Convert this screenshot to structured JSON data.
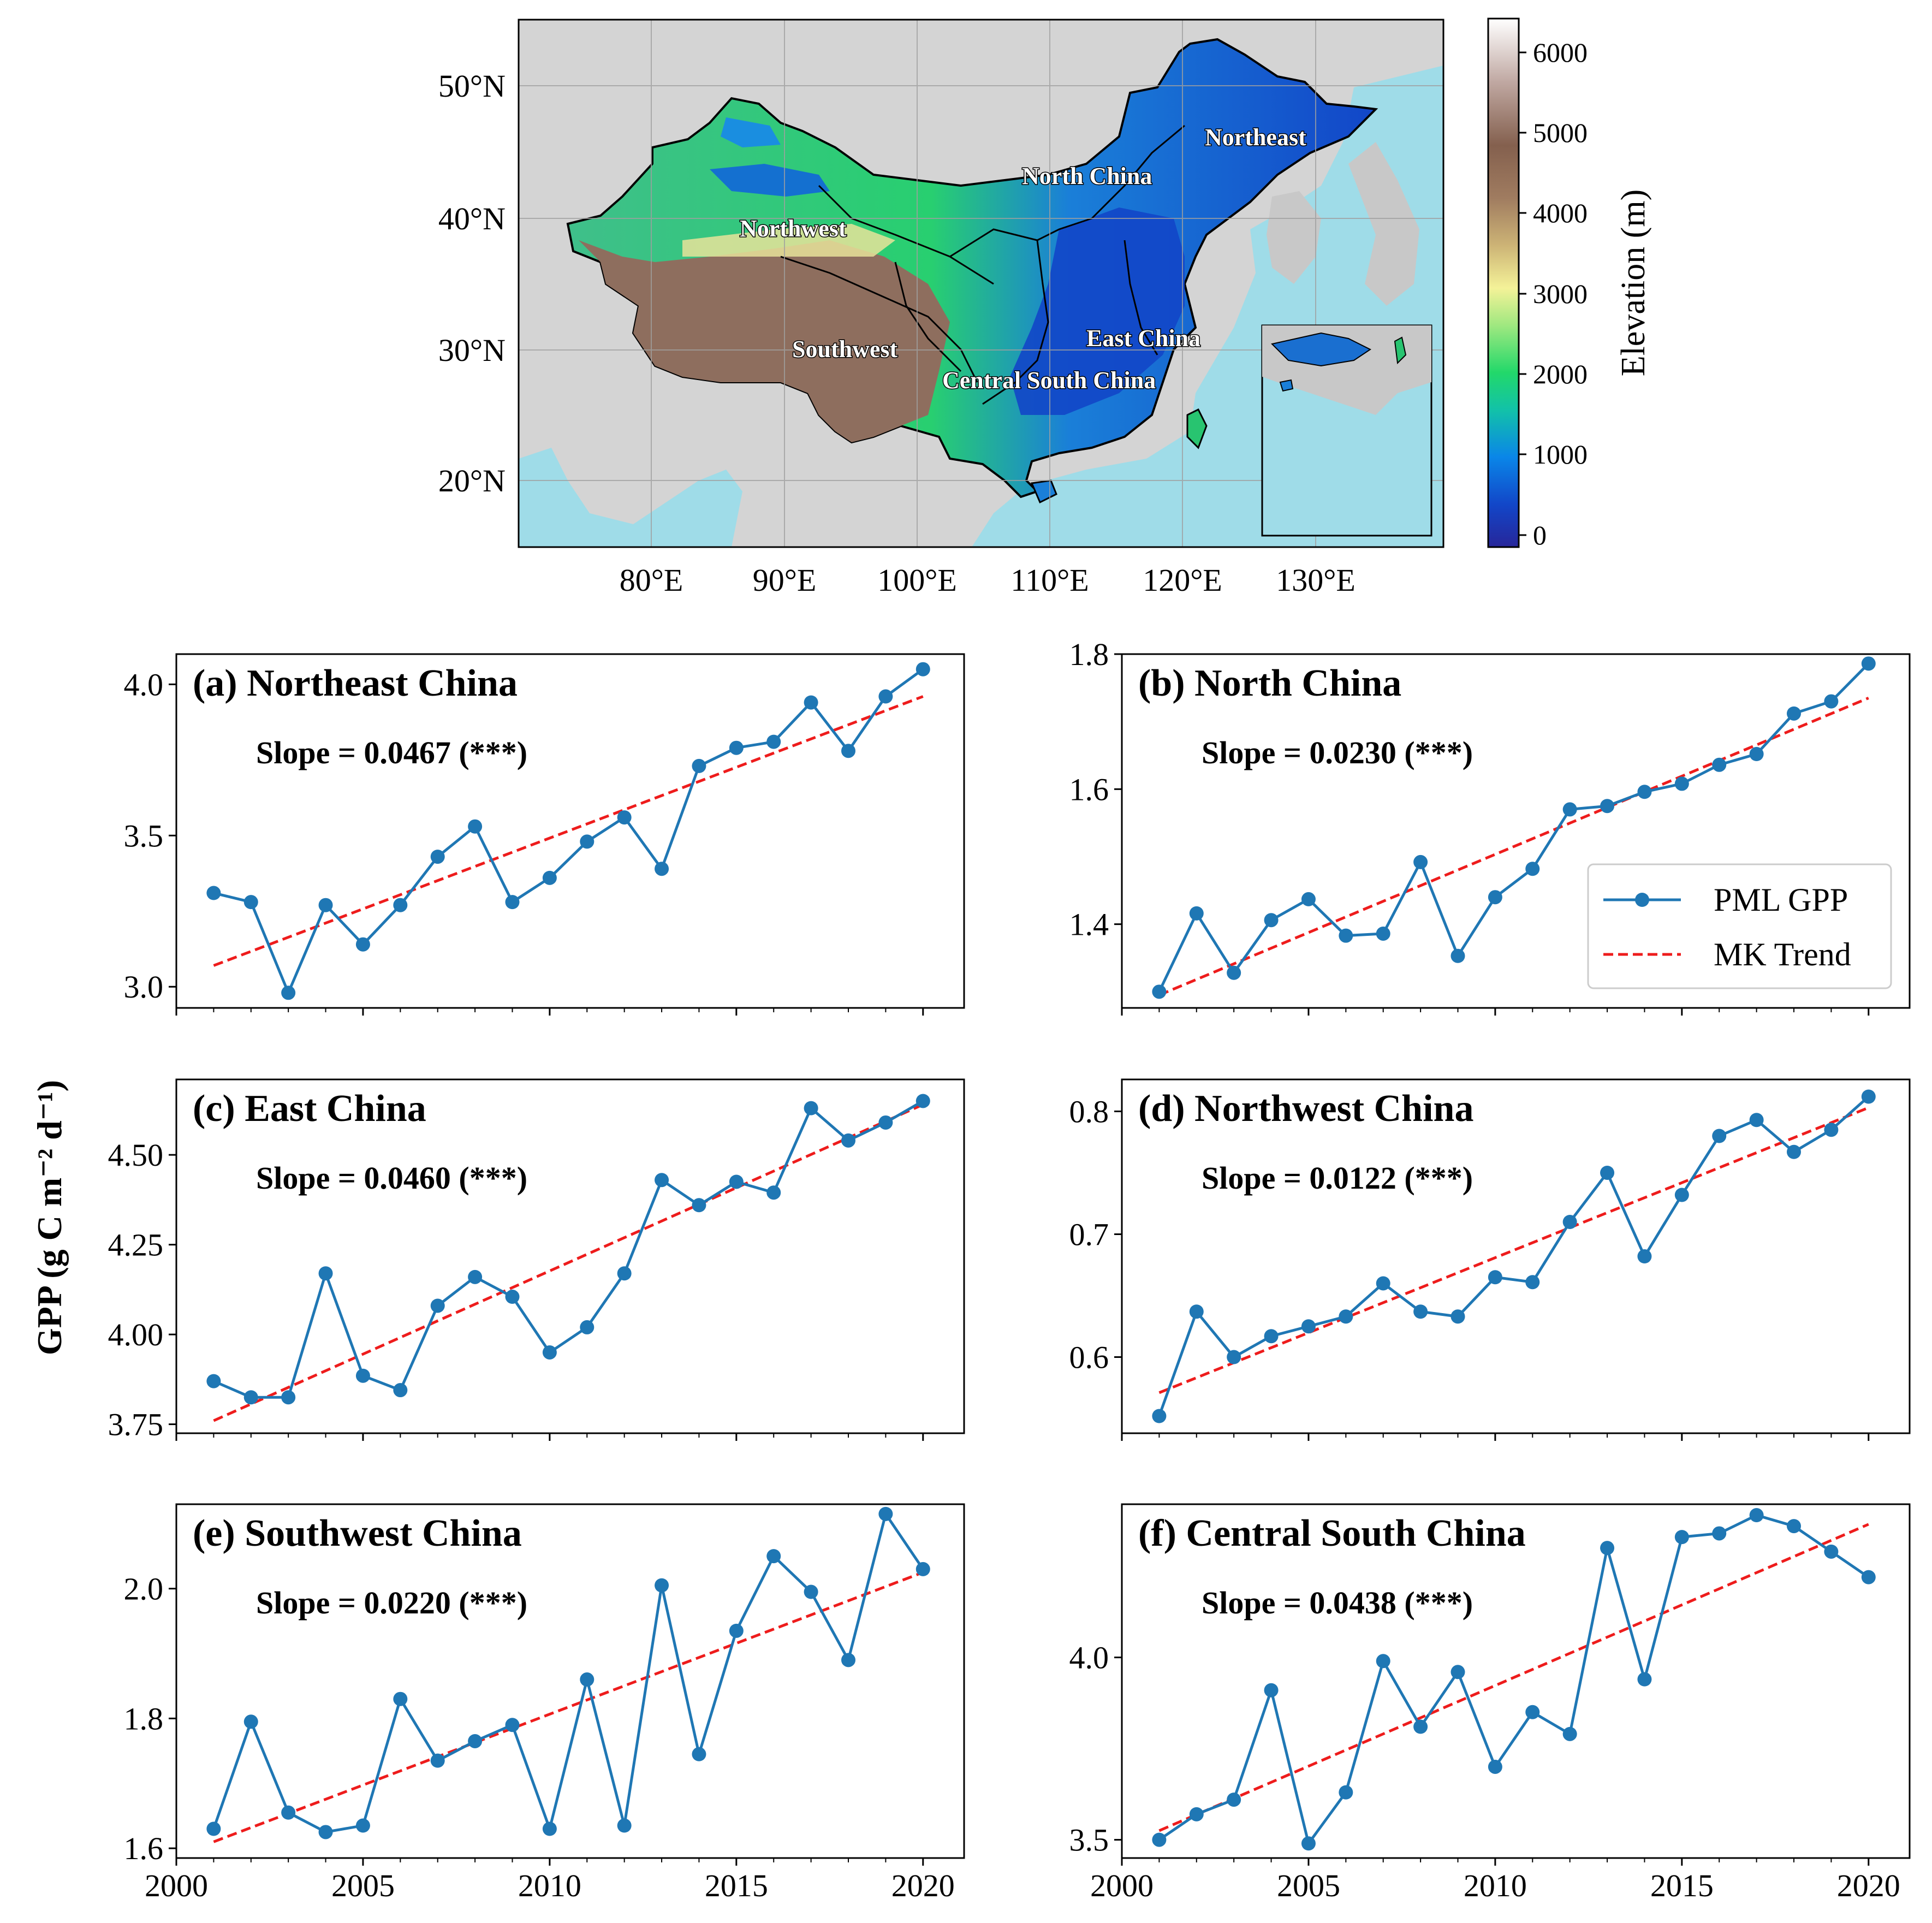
{
  "map": {
    "lat_ticks": [
      "50°N",
      "40°N",
      "30°N",
      "20°N"
    ],
    "lon_ticks": [
      "80°E",
      "90°E",
      "100°E",
      "110°E",
      "120°E",
      "130°E"
    ],
    "regions": [
      "Northeast",
      "North China",
      "Northwest",
      "East China",
      "Southwest",
      "Central South China"
    ],
    "colorbar": {
      "label": "Elevation (m)",
      "ticks": [
        "6000",
        "5000",
        "4000",
        "3000",
        "2000",
        "1000",
        "0"
      ]
    },
    "colors": {
      "background": "#d4d4d4",
      "ocean": "#9fdce8",
      "lowland": "#1540c0",
      "midland": "#1ec86c",
      "highland": "#8e6e5e"
    }
  },
  "legend": {
    "series_label": "PML GPP",
    "trend_label": "MK Trend"
  },
  "y_label": "GPP (g C m⁻² d⁻¹)",
  "colors": {
    "series": "#1f77b4",
    "trend": "#ee1c1c"
  },
  "chart_data": [
    {
      "type": "line",
      "title": "(a) Northeast China",
      "slope_text": "Slope = 0.0467 (***)",
      "x": [
        2001,
        2002,
        2003,
        2004,
        2005,
        2006,
        2007,
        2008,
        2009,
        2010,
        2011,
        2012,
        2013,
        2014,
        2015,
        2016,
        2017,
        2018,
        2019,
        2020
      ],
      "values": [
        3.31,
        3.28,
        2.98,
        3.27,
        3.14,
        3.27,
        3.43,
        3.53,
        3.28,
        3.36,
        3.48,
        3.56,
        3.39,
        3.73,
        3.79,
        3.81,
        3.94,
        3.78,
        3.96,
        4.05
      ],
      "trend": [
        3.07,
        3.96
      ],
      "ylim": [
        2.93,
        4.1
      ],
      "yticks": [
        3.0,
        3.5,
        4.0
      ],
      "ytick_labels": [
        "3.0",
        "3.5",
        "4.0"
      ],
      "xticks": [
        2000,
        2005,
        2010,
        2015,
        2020
      ],
      "xtick_labels": []
    },
    {
      "type": "line",
      "title": "(b) North China",
      "slope_text": "Slope = 0.0230 (***)",
      "x": [
        2001,
        2002,
        2003,
        2004,
        2005,
        2006,
        2007,
        2008,
        2009,
        2010,
        2011,
        2012,
        2013,
        2014,
        2015,
        2016,
        2017,
        2018,
        2019,
        2020
      ],
      "values": [
        1.3,
        1.416,
        1.328,
        1.406,
        1.437,
        1.383,
        1.386,
        1.492,
        1.353,
        1.44,
        1.482,
        1.57,
        1.575,
        1.596,
        1.608,
        1.636,
        1.652,
        1.712,
        1.73,
        1.786
      ],
      "trend": [
        1.295,
        1.735
      ],
      "ylim": [
        1.276,
        1.8
      ],
      "yticks": [
        1.4,
        1.6,
        1.8
      ],
      "ytick_labels": [
        "1.4",
        "1.6",
        "1.8"
      ],
      "xticks": [
        2000,
        2005,
        2010,
        2015,
        2020
      ],
      "xtick_labels": []
    },
    {
      "type": "line",
      "title": "(c) East China",
      "slope_text": "Slope = 0.0460 (***)",
      "x": [
        2001,
        2002,
        2003,
        2004,
        2005,
        2006,
        2007,
        2008,
        2009,
        2010,
        2011,
        2012,
        2013,
        2014,
        2015,
        2016,
        2017,
        2018,
        2019,
        2020
      ],
      "values": [
        3.87,
        3.825,
        3.825,
        4.17,
        3.885,
        3.845,
        4.08,
        4.16,
        4.105,
        3.95,
        4.02,
        4.17,
        4.43,
        4.36,
        4.425,
        4.395,
        4.63,
        4.54,
        4.59,
        4.65
      ],
      "trend": [
        3.76,
        4.64
      ],
      "ylim": [
        3.725,
        4.71
      ],
      "yticks": [
        3.75,
        4.0,
        4.25,
        4.5
      ],
      "ytick_labels": [
        "3.75",
        "4.00",
        "4.25",
        "4.50"
      ],
      "xticks": [
        2000,
        2005,
        2010,
        2015,
        2020
      ],
      "xtick_labels": []
    },
    {
      "type": "line",
      "title": "(d) Northwest China",
      "slope_text": "Slope = 0.0122 (***)",
      "x": [
        2001,
        2002,
        2003,
        2004,
        2005,
        2006,
        2007,
        2008,
        2009,
        2010,
        2011,
        2012,
        2013,
        2014,
        2015,
        2016,
        2017,
        2018,
        2019,
        2020
      ],
      "values": [
        0.552,
        0.637,
        0.6,
        0.617,
        0.625,
        0.633,
        0.66,
        0.637,
        0.633,
        0.665,
        0.661,
        0.71,
        0.75,
        0.682,
        0.732,
        0.78,
        0.793,
        0.767,
        0.785,
        0.812
      ],
      "trend": [
        0.571,
        0.803
      ],
      "ylim": [
        0.538,
        0.826
      ],
      "yticks": [
        0.6,
        0.7,
        0.8
      ],
      "ytick_labels": [
        "0.6",
        "0.7",
        "0.8"
      ],
      "xticks": [
        2000,
        2005,
        2010,
        2015,
        2020
      ],
      "xtick_labels": []
    },
    {
      "type": "line",
      "title": "(e) Southwest China",
      "slope_text": "Slope = 0.0220 (***)",
      "x": [
        2001,
        2002,
        2003,
        2004,
        2005,
        2006,
        2007,
        2008,
        2009,
        2010,
        2011,
        2012,
        2013,
        2014,
        2015,
        2016,
        2017,
        2018,
        2019,
        2020
      ],
      "values": [
        1.63,
        1.795,
        1.655,
        1.625,
        1.635,
        1.83,
        1.735,
        1.765,
        1.79,
        1.63,
        1.86,
        1.635,
        2.005,
        1.745,
        1.935,
        2.05,
        1.995,
        1.89,
        2.115,
        2.03
      ],
      "trend": [
        1.61,
        2.025
      ],
      "ylim": [
        1.585,
        2.13
      ],
      "yticks": [
        1.6,
        1.8,
        2.0
      ],
      "ytick_labels": [
        "1.6",
        "1.8",
        "2.0"
      ],
      "xticks": [
        2000,
        2005,
        2010,
        2015,
        2020
      ],
      "xtick_labels": [
        "2000",
        "2005",
        "2010",
        "2015",
        "2020"
      ]
    },
    {
      "type": "line",
      "title": "(f) Central South China",
      "slope_text": "Slope = 0.0438 (***)",
      "x": [
        2001,
        2002,
        2003,
        2004,
        2005,
        2006,
        2007,
        2008,
        2009,
        2010,
        2011,
        2012,
        2013,
        2014,
        2015,
        2016,
        2017,
        2018,
        2019,
        2020
      ],
      "values": [
        3.5,
        3.57,
        3.61,
        3.91,
        3.49,
        3.63,
        3.99,
        3.81,
        3.96,
        3.7,
        3.85,
        3.79,
        4.3,
        3.94,
        4.33,
        4.34,
        4.39,
        4.36,
        4.29,
        4.22
      ],
      "trend": [
        3.525,
        4.365
      ],
      "ylim": [
        3.45,
        4.42
      ],
      "yticks": [
        3.5,
        4.0
      ],
      "ytick_labels": [
        "3.5",
        "4.0"
      ],
      "xticks": [
        2000,
        2005,
        2010,
        2015,
        2020
      ],
      "xtick_labels": [
        "2000",
        "2005",
        "2010",
        "2015",
        "2020"
      ]
    }
  ]
}
